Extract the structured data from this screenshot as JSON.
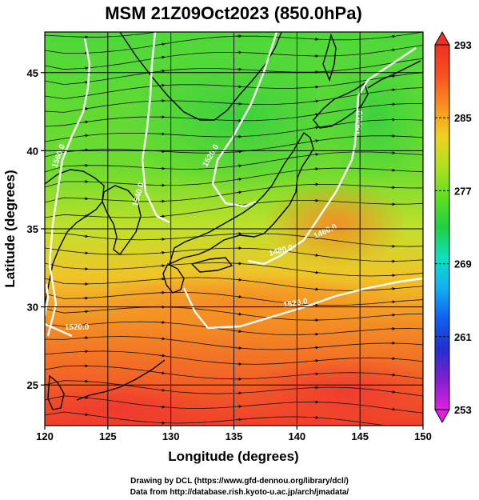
{
  "title": "MSM 21Z09Oct2023 (850.0hPa)",
  "x_axis": {
    "label": "Longitude (degrees)",
    "ticks": [
      "120",
      "125",
      "130",
      "135",
      "140",
      "145",
      "150"
    ],
    "range": [
      120,
      150
    ]
  },
  "y_axis": {
    "label": "Latitude  (degrees)",
    "ticks": [
      "25",
      "30",
      "35",
      "40",
      "45"
    ],
    "range": [
      22.4,
      47.6
    ]
  },
  "colorbar": {
    "range": [
      253,
      293
    ],
    "ticks": [
      "293",
      "285",
      "277",
      "269",
      "261",
      "253"
    ],
    "colors": [
      "#e020e0",
      "#8020d0",
      "#2030d0",
      "#1060f0",
      "#10b0f0",
      "#10e0c0",
      "#20d040",
      "#60e020",
      "#b0e020",
      "#f0d020",
      "#f89020",
      "#f85020",
      "#f03020"
    ]
  },
  "contours": {
    "labels": [
      "1560.0",
      "1540.0",
      "1520.0",
      "1500.0",
      "1460.0",
      "1480.0",
      "1520.0",
      "1520.0"
    ]
  },
  "credits": {
    "line1": "Drawing by DCL (https://www.gfd-dennou.org/library/dcl/)",
    "line2": "Data from http://database.rish.kyoto-u.ac.jp/arch/jmadata/"
  }
}
